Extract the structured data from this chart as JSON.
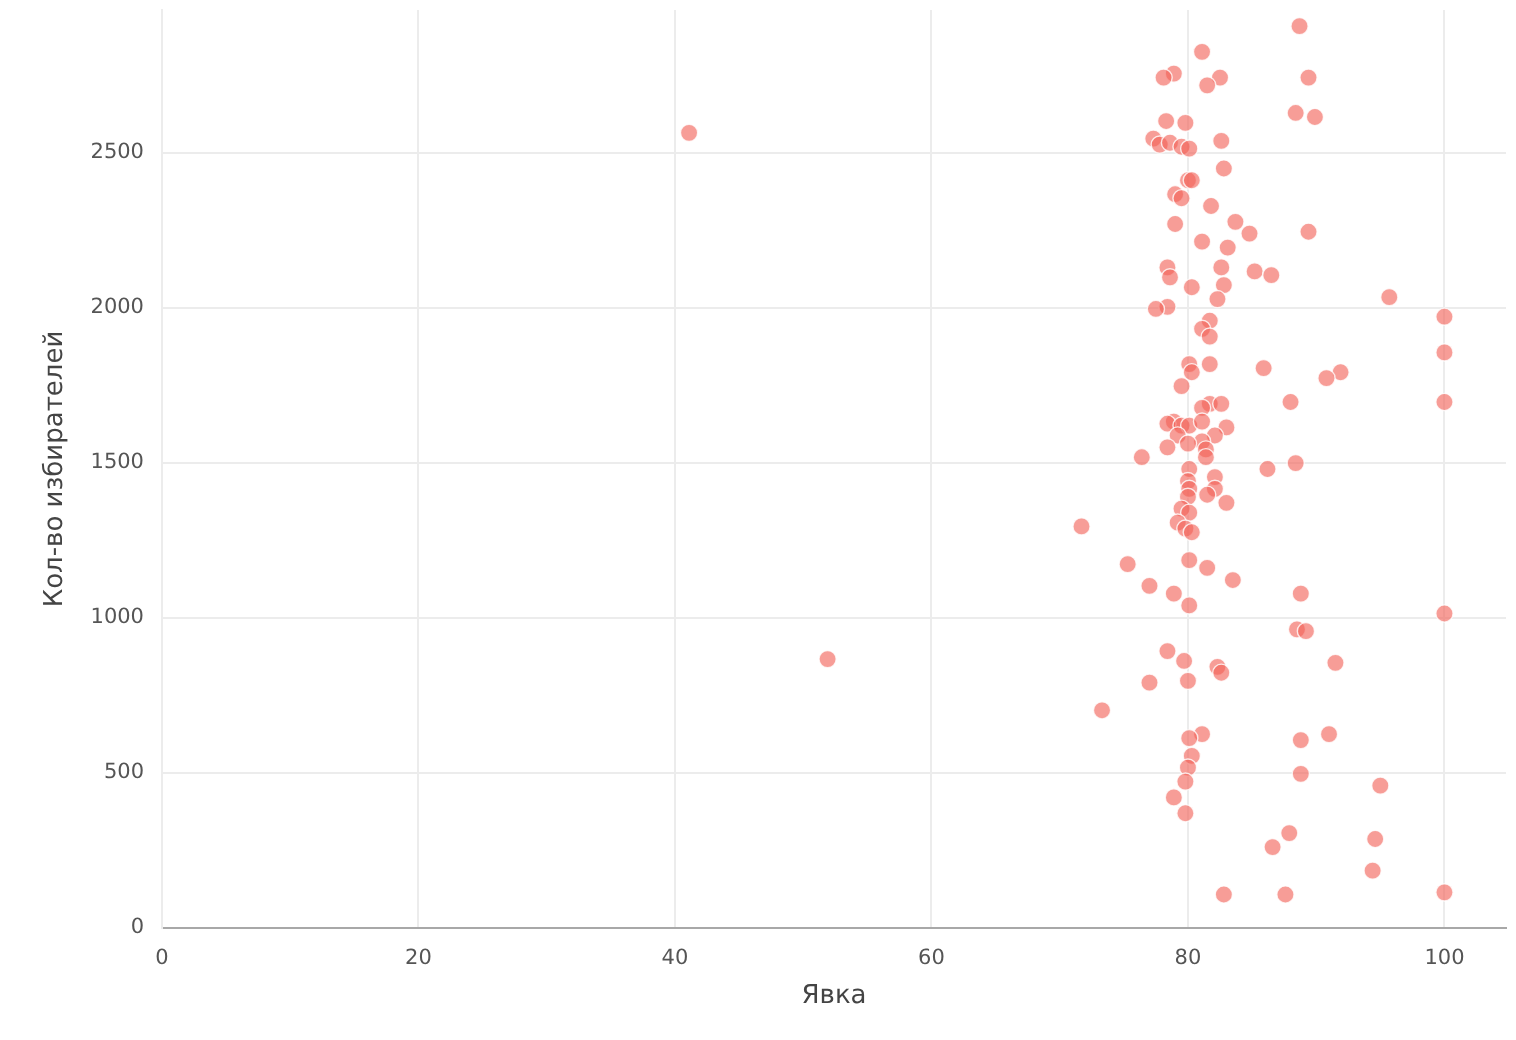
{
  "chart_data": {
    "type": "scatter",
    "xlabel": "Явка",
    "ylabel": "Кол-во избирателей",
    "x": [
      88.7,
      81.1,
      78.9,
      78.1,
      82.5,
      89.4,
      81.5,
      88.4,
      89.9,
      79.8,
      78.3,
      77.3,
      77.8,
      78.6,
      79.5,
      80.1,
      82.6,
      82.8,
      80.0,
      80.3,
      79.0,
      79.5,
      81.8,
      83.7,
      79.0,
      84.8,
      89.4,
      81.1,
      83.1,
      85.2,
      78.4,
      82.6,
      86.5,
      78.6,
      82.8,
      80.3,
      95.7,
      82.3,
      78.4,
      77.5,
      100,
      81.7,
      81.1,
      81.7,
      100,
      80.1,
      81.7,
      85.9,
      91.9,
      90.8,
      80.3,
      79.5,
      100,
      88.0,
      81.7,
      82.6,
      81.1,
      78.9,
      78.4,
      79.5,
      80.1,
      83.0,
      81.1,
      79.2,
      82.1,
      81.1,
      81.4,
      78.4,
      80.0,
      76.4,
      81.4,
      86.2,
      88.4,
      80.1,
      82.1,
      80.0,
      80.1,
      82.1,
      81.5,
      80.0,
      83.0,
      79.5,
      80.1,
      79.2,
      79.8,
      80.3,
      71.7,
      75.3,
      80.1,
      81.5,
      83.5,
      77.0,
      78.9,
      88.8,
      80.1,
      100,
      88.5,
      89.2,
      78.4,
      79.7,
      91.5,
      82.3,
      82.6,
      51.9,
      80.0,
      77.0,
      73.3,
      81.1,
      80.1,
      91.0,
      88.8,
      80.3,
      80.0,
      88.8,
      95.0,
      79.8,
      78.9,
      79.8,
      87.9,
      94.6,
      86.6,
      94.4,
      82.8,
      87.6,
      100,
      41.1
    ],
    "values": [
      2908,
      2825,
      2755,
      2742,
      2742,
      2742,
      2717,
      2628,
      2615,
      2596,
      2602,
      2545,
      2526,
      2532,
      2519,
      2513,
      2538,
      2449,
      2411,
      2411,
      2366,
      2353,
      2328,
      2277,
      2270,
      2239,
      2245,
      2213,
      2194,
      2117,
      2130,
      2130,
      2105,
      2098,
      2073,
      2066,
      2034,
      2028,
      2003,
      1996,
      1971,
      1958,
      1932,
      1907,
      1856,
      1818,
      1818,
      1805,
      1792,
      1773,
      1792,
      1747,
      1696,
      1696,
      1690,
      1690,
      1677,
      1633,
      1626,
      1620,
      1620,
      1614,
      1633,
      1588,
      1588,
      1569,
      1543,
      1550,
      1562,
      1518,
      1518,
      1480,
      1499,
      1480,
      1454,
      1441,
      1416,
      1416,
      1397,
      1390,
      1371,
      1352,
      1339,
      1307,
      1288,
      1276,
      1295,
      1173,
      1186,
      1161,
      1122,
      1103,
      1078,
      1078,
      1040,
      1014,
      963,
      957,
      893,
      861,
      855,
      842,
      823,
      867,
      797,
      791,
      702,
      625,
      612,
      625,
      606,
      555,
      517,
      497,
      459,
      472,
      421,
      370,
      306,
      287,
      261,
      185,
      108,
      108,
      115,
      2564
    ],
    "color": "#f26157",
    "marker": "circle",
    "xlim": [
      0,
      104.8
    ],
    "ylim": [
      0,
      2960
    ],
    "xticks": [
      0,
      20,
      40,
      60,
      80,
      100
    ],
    "yticks": [
      0,
      500,
      1000,
      1500,
      2000,
      2500
    ],
    "grid": true
  }
}
